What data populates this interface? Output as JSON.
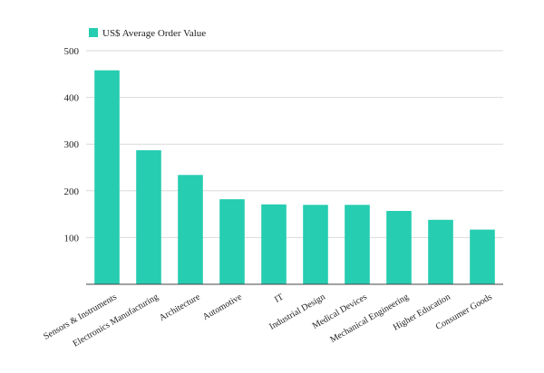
{
  "chart_data": {
    "type": "bar",
    "legend": {
      "label": "US$ Average Order Value",
      "position": "top-left"
    },
    "categories": [
      "Sensors & Instruments",
      "Electronics Manufacturing",
      "Architecture",
      "Automotive",
      "IT",
      "Industrial Design",
      "Medical Devices",
      "Mechanical Engineering",
      "Higher Education",
      "Consumer Goods"
    ],
    "series": [
      {
        "name": "US$ Average Order Value",
        "values": [
          458,
          287,
          234,
          182,
          171,
          170,
          170,
          157,
          138,
          117
        ]
      }
    ],
    "ylim": [
      0,
      500
    ],
    "yticks": [
      100,
      200,
      300,
      400,
      500
    ],
    "grid": true,
    "colors": {
      "bar": "#26CDB0",
      "grid": "#d9d9d9",
      "axis": "#444444",
      "text": "#222222"
    }
  }
}
